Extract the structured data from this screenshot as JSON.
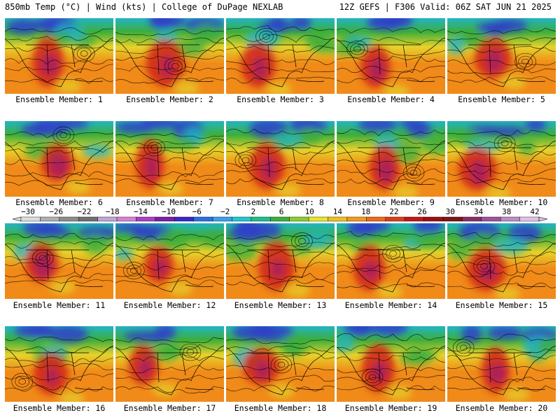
{
  "header": {
    "left": "850mb Temp (°C) | Wind (kts) | College of DuPage NEXLAB",
    "right": "12Z GEFS | F306 Valid: 06Z SAT JUN 21 2025"
  },
  "member_label_prefix": "Ensemble Member: ",
  "members": [
    1,
    2,
    3,
    4,
    5,
    6,
    7,
    8,
    9,
    10,
    11,
    12,
    13,
    14,
    15,
    16,
    17,
    18,
    19,
    20
  ],
  "colorbar": {
    "ticks": [
      -30,
      -26,
      -22,
      -18,
      -14,
      -10,
      -6,
      -2,
      2,
      6,
      10,
      14,
      18,
      22,
      26,
      30,
      34,
      38,
      42
    ],
    "colors": [
      "#dcdcdc",
      "#b0b0b0",
      "#8c8c8c",
      "#707070",
      "#bfa6d6",
      "#d97ed9",
      "#b13bc9",
      "#7a1fa8",
      "#3c28c8",
      "#2a6fe8",
      "#3aa0f0",
      "#20c8d0",
      "#18c08a",
      "#3cae3c",
      "#8ccd2e",
      "#e6e62a",
      "#f0c020",
      "#f59a18",
      "#ef6a14",
      "#e03c14",
      "#c81414",
      "#a00e0e",
      "#801414",
      "#8c2c6c",
      "#a050a0",
      "#c08ac8",
      "#e0c0e8"
    ]
  },
  "map_palette": {
    "cold": "#2f3fc8",
    "cool": "#22b4c4",
    "mild": "#3cae3c",
    "warm": "#e6d22a",
    "hot": "#f08a18",
    "very_hot": "#d02814",
    "extreme": "#8e1a8e",
    "contour": "#000000",
    "coast": "#000000"
  }
}
